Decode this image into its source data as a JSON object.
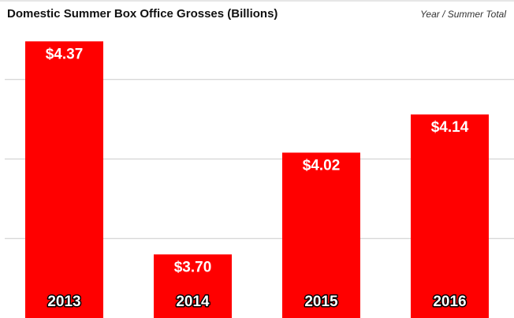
{
  "chart_data": {
    "type": "bar",
    "title": "Domestic Summer Box Office Grosses (Billions)",
    "subtitle": "Year / Summer Total",
    "categories": [
      "2013",
      "2014",
      "2015",
      "2016"
    ],
    "values": [
      4.37,
      3.7,
      4.02,
      4.14
    ],
    "value_labels": [
      "$4.37",
      "$3.70",
      "$4.02",
      "$4.14"
    ],
    "xlabel": "",
    "ylabel": "",
    "ylim": [
      3.5,
      4.5
    ],
    "grid": true,
    "colors": {
      "bar": "#ff0000",
      "grid": "#cccccc",
      "background": "#ffffff"
    }
  }
}
